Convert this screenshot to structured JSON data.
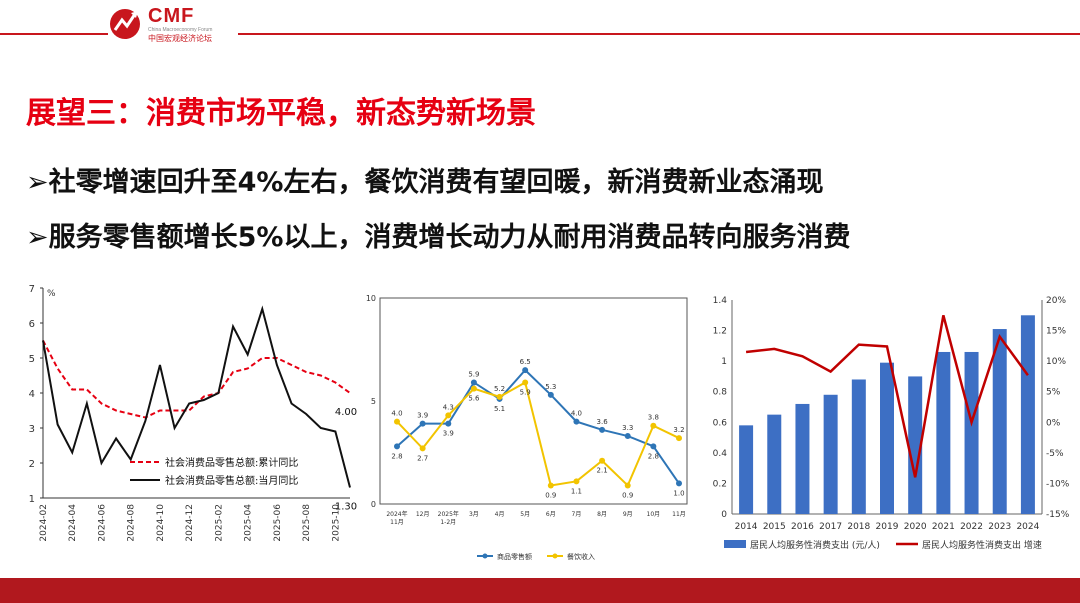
{
  "header": {
    "logo_text": "CMF",
    "logo_subtitle_en": "China Macroeconomy Forum",
    "logo_subtitle_cn": "中国宏观经济论坛"
  },
  "slide": {
    "title": "展望三：消费市场平稳，新态势新场景",
    "bullets": [
      "➢社零增速回升至4%左右，餐饮消费有望回暖，新消费新业态涌现",
      "➢服务零售额增长5%以上，消费增长动力从耐用消费品转向服务消费"
    ]
  },
  "colors": {
    "accent": "#e60012",
    "footer": "#b1181e",
    "blue": "#2e75b6",
    "yellow": "#f2c400",
    "bar": "#3d6fc4",
    "line_red": "#c00000"
  },
  "chart_data": [
    {
      "type": "line",
      "ylabel": "%",
      "ylim": [
        1,
        7
      ],
      "yticks": [
        1,
        2,
        3,
        4,
        5,
        6,
        7
      ],
      "x": [
        "2024-02",
        "2024-03",
        "2024-04",
        "2024-05",
        "2024-06",
        "2024-07",
        "2024-08",
        "2024-09",
        "2024-10",
        "2024-11",
        "2024-12",
        "2025-01",
        "2025-02",
        "2025-03",
        "2025-04",
        "2025-05",
        "2025-06",
        "2025-07",
        "2025-08",
        "2025-09",
        "2025-10",
        "2025-11"
      ],
      "xtick_labels": [
        "2024-02",
        "2024-04",
        "2024-06",
        "2024-08",
        "2024-10",
        "2024-12",
        "2025-02",
        "2025-04",
        "2025-06",
        "2025-08",
        "2025-10"
      ],
      "series": [
        {
          "name": "社会消费品零售总额:累计同比",
          "style": "dashed",
          "color": "#e60012",
          "values": [
            5.5,
            4.7,
            4.1,
            4.1,
            3.7,
            3.5,
            3.4,
            3.3,
            3.5,
            3.5,
            3.5,
            3.9,
            4.0,
            4.6,
            4.7,
            5.0,
            5.0,
            4.8,
            4.6,
            4.5,
            4.3,
            4.0
          ]
        },
        {
          "name": "社会消费品零售总额:当月同比",
          "style": "solid",
          "color": "#111111",
          "values": [
            5.5,
            3.1,
            2.3,
            3.7,
            2.0,
            2.7,
            2.1,
            3.2,
            4.8,
            3.0,
            3.7,
            3.8,
            4.0,
            5.9,
            5.1,
            6.4,
            4.8,
            3.7,
            3.4,
            3.0,
            2.9,
            1.3
          ]
        }
      ],
      "annotations": [
        "4.00",
        "1.30"
      ]
    },
    {
      "type": "line",
      "ylim": [
        0,
        10
      ],
      "yticks": [
        0,
        5,
        10
      ],
      "categories": [
        "2024年11月",
        "12月",
        "2025年1-2月",
        "3月",
        "4月",
        "5月",
        "6月",
        "7月",
        "8月",
        "9月",
        "10月",
        "11月"
      ],
      "series": [
        {
          "name": "商品零售额",
          "color": "#2e75b6",
          "values": [
            2.8,
            3.9,
            3.9,
            5.9,
            5.1,
            6.5,
            5.3,
            4.0,
            3.6,
            3.3,
            2.8,
            1.0
          ]
        },
        {
          "name": "餐饮收入",
          "color": "#f2c400",
          "values": [
            4.0,
            2.7,
            4.3,
            5.6,
            5.2,
            5.9,
            0.9,
            1.1,
            2.1,
            0.9,
            3.8,
            3.2
          ]
        }
      ],
      "point_labels": {
        "商品零售额": [
          "2.8",
          "3.9",
          "3.9",
          "5.9",
          "5.1",
          "6.5",
          "5.3",
          "4.0",
          "3.6",
          "3.3",
          "2.8",
          "1.0"
        ],
        "餐饮收入": [
          "4.0",
          "2.7",
          "4.3",
          "5.6",
          "5.2",
          "5.9",
          "0.9",
          "1.1",
          "2.1",
          "0.9",
          "3.8",
          "3.2"
        ]
      }
    },
    {
      "type": "bar",
      "categories": [
        "2014",
        "2015",
        "2016",
        "2017",
        "2018",
        "2019",
        "2020",
        "2021",
        "2022",
        "2023",
        "2024"
      ],
      "ylim": [
        0,
        1.4
      ],
      "yticks": [
        "0",
        "0.2",
        "0.4",
        "0.6",
        "0.8",
        "1",
        "1.2",
        "1.4"
      ],
      "y2lim": [
        -15,
        20
      ],
      "y2ticks": [
        "-15%",
        "-10%",
        "-5%",
        "0%",
        "5%",
        "10%",
        "15%",
        "20%"
      ],
      "series": [
        {
          "name": "居民人均服务性消费支出 (元/人)",
          "type": "bar",
          "axis": "left",
          "color": "#3d6fc4",
          "values": [
            0.58,
            0.65,
            0.72,
            0.78,
            0.88,
            0.99,
            0.9,
            1.06,
            1.06,
            1.21,
            1.3
          ]
        },
        {
          "name": "居民人均服务性消费支出 增速",
          "type": "line",
          "axis": "right",
          "color": "#c00000",
          "values": [
            11.5,
            12.0,
            10.8,
            8.3,
            12.7,
            12.4,
            -9.0,
            17.5,
            0.0,
            14.0,
            7.7
          ]
        }
      ]
    }
  ]
}
